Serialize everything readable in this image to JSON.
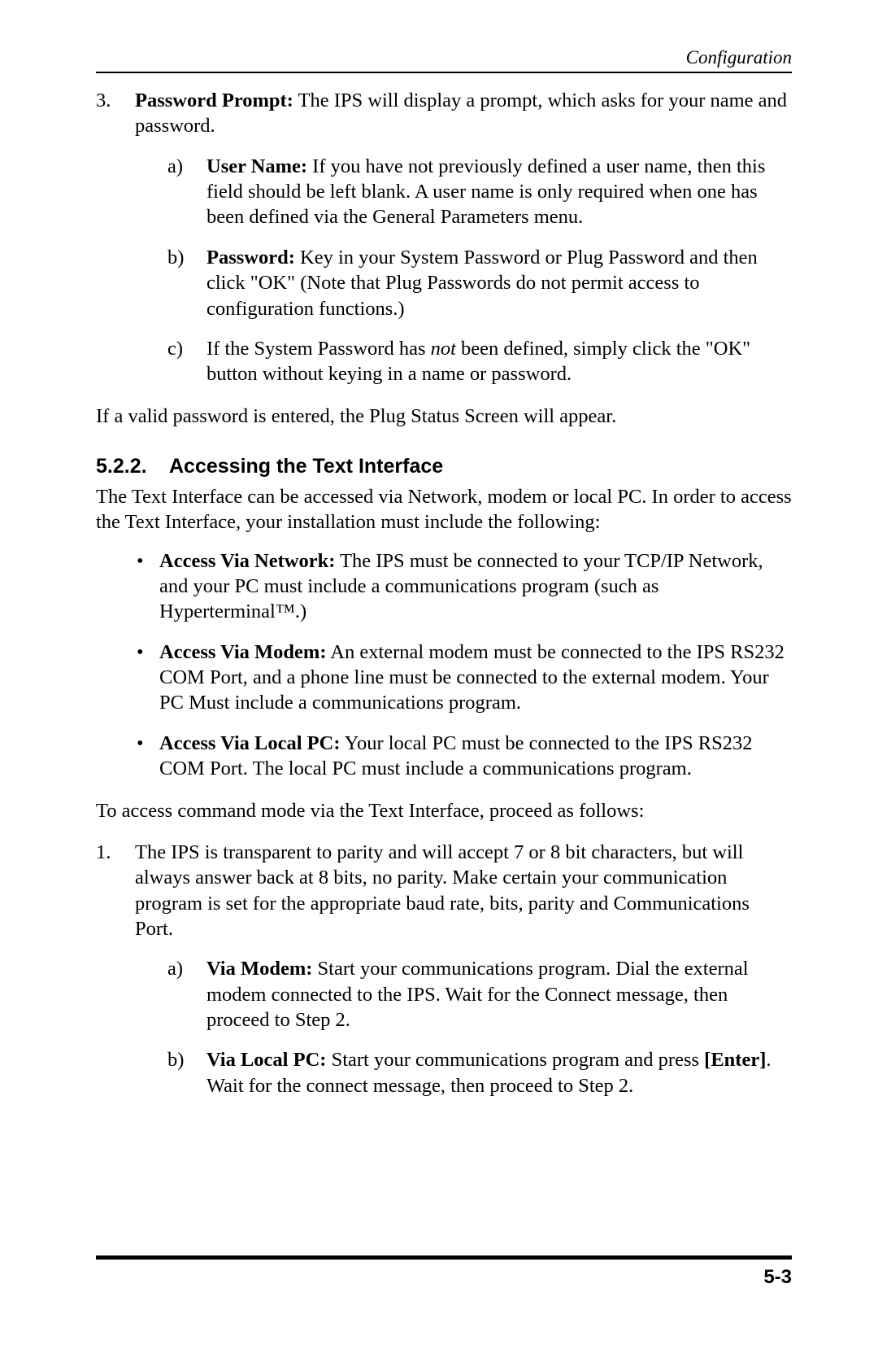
{
  "header": {
    "title": "Configuration"
  },
  "item3": {
    "number": "3.",
    "label": "Password Prompt:",
    "text": "  The IPS will display a prompt, which asks for your name and password.",
    "a": {
      "letter": "a)",
      "label": "User Name:",
      "text": "  If you have not previously defined a user name, then this field should be left blank.  A user name is only required when one has been defined via the General Parameters menu."
    },
    "b": {
      "letter": "b)",
      "label": "Password:",
      "text": "  Key in your System Password or Plug Password and then click \"OK\" (Note that Plug Passwords do not permit access to configuration functions.)"
    },
    "c": {
      "letter": "c)",
      "pre": "If the System Password has ",
      "em": "not",
      "post": " been defined, simply click the \"OK\" button without keying in a name or password."
    }
  },
  "para_valid": "If a valid password is entered, the Plug Status Screen will appear.",
  "section": {
    "number": "5.2.2.",
    "title": "Accessing the Text Interface"
  },
  "section_intro": "The Text Interface can be accessed via Network, modem or local PC.  In order to access the Text Interface, your installation must include the following:",
  "bullets": {
    "net": {
      "label": "Access Via Network:",
      "text": "  The IPS must be connected to your TCP/IP Network, and your PC must include a communications program (such as Hyperterminal™.)"
    },
    "modem": {
      "label": "Access Via Modem:",
      "text": "  An external modem must be connected to the IPS RS232 COM Port, and a phone line must be connected to the external modem.  Your PC Must include a communications program."
    },
    "local": {
      "label": "Access Via Local PC:",
      "text": "  Your local PC must be connected to the IPS RS232 COM Port.  The local PC must include a communications program."
    }
  },
  "para_access": "To access command mode via the Text Interface, proceed as follows:",
  "item1": {
    "number": "1.",
    "text": "The IPS is transparent to parity and will accept 7 or 8 bit characters, but will always answer back at 8 bits, no parity.  Make certain your communication program is set for the appropriate baud rate, bits, parity and Communications Port.",
    "a": {
      "letter": "a)",
      "label": "Via Modem:",
      "text": "  Start your communications program.  Dial the external modem connected to the IPS.  Wait for the Connect message, then proceed to Step 2."
    },
    "b": {
      "letter": "b)",
      "label": "Via Local PC:",
      "text1": "  Start your communications program and press ",
      "enter": "[Enter]",
      "text2": ".  Wait for the connect message, then proceed to Step 2."
    }
  },
  "footer": {
    "page": "5-3"
  },
  "bullet_char": "•"
}
